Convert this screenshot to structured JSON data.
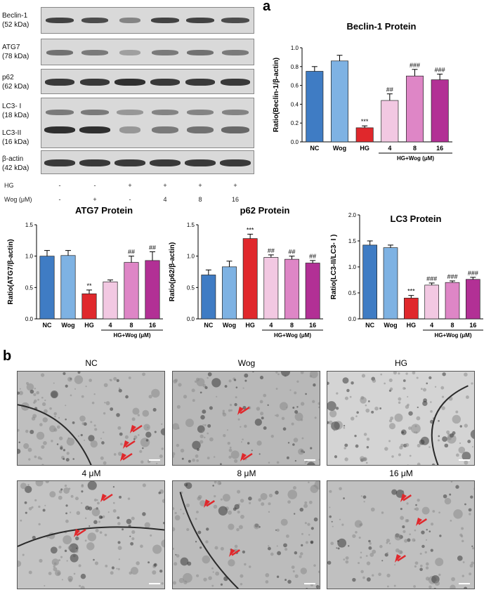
{
  "panel_a_label": "a",
  "panel_b_label": "b",
  "blots": [
    {
      "label_line1": "Beclin-1",
      "label_line2": "(52 kDa)"
    },
    {
      "label_line1": "ATG7",
      "label_line2": "(78 kDa)"
    },
    {
      "label_line1": "p62",
      "label_line2": "(62 kDa)"
    },
    {
      "label_line1": "LC3- I",
      "label_line2": "(18 kDa)",
      "label_line3": "LC3-II",
      "label_line4": "(16 kDa)"
    },
    {
      "label_line1": "β-actin",
      "label_line2": "(42 kDa)"
    }
  ],
  "treatment_table": {
    "hg_label": "HG",
    "wog_label": "Wog (μM)",
    "hg": [
      "-",
      "-",
      "+",
      "+",
      "+",
      "+"
    ],
    "wog": [
      "-",
      "+",
      "-",
      "4",
      "8",
      "16"
    ]
  },
  "chart_data": [
    {
      "type": "bar",
      "title": "Beclin-1 Protein",
      "ylabel": "Ratio(Beclin-1/β-actin)",
      "categories": [
        "NC",
        "Wog",
        "HG",
        "4",
        "8",
        "16"
      ],
      "values": [
        0.75,
        0.86,
        0.15,
        0.44,
        0.7,
        0.66
      ],
      "errors": [
        0.05,
        0.06,
        0.02,
        0.07,
        0.07,
        0.06
      ],
      "annotations": [
        "",
        "",
        "***",
        "##",
        "###",
        "###"
      ],
      "colors": [
        "#3f7cc4",
        "#7eb2e3",
        "#e0282c",
        "#f2c8e2",
        "#de86c6",
        "#b23095"
      ],
      "ylim": [
        0,
        1.0
      ],
      "yticks": [
        "0.0",
        "0.2",
        "0.4",
        "0.6",
        "0.8",
        "1.0"
      ],
      "group_label": "HG+Wog (μM)"
    },
    {
      "type": "bar",
      "title": "ATG7 Protein",
      "ylabel": "Ratio(ATG7/β-actin)",
      "categories": [
        "NC",
        "Wog",
        "HG",
        "4",
        "8",
        "16"
      ],
      "values": [
        1.0,
        1.01,
        0.4,
        0.59,
        0.9,
        0.93
      ],
      "errors": [
        0.09,
        0.08,
        0.06,
        0.03,
        0.1,
        0.14
      ],
      "annotations": [
        "",
        "",
        "**",
        "",
        "##",
        "##"
      ],
      "colors": [
        "#3f7cc4",
        "#7eb2e3",
        "#e0282c",
        "#f2c8e2",
        "#de86c6",
        "#b23095"
      ],
      "ylim": [
        0,
        1.5
      ],
      "yticks": [
        "0.0",
        "0.5",
        "1.0",
        "1.5"
      ],
      "group_label": "HG+Wog (μM)"
    },
    {
      "type": "bar",
      "title": "p62 Protein",
      "ylabel": "Ratio(p62/β-actin)",
      "categories": [
        "NC",
        "Wog",
        "HG",
        "4",
        "8",
        "16"
      ],
      "values": [
        0.7,
        0.83,
        1.28,
        0.98,
        0.95,
        0.89
      ],
      "errors": [
        0.08,
        0.09,
        0.07,
        0.04,
        0.05,
        0.04
      ],
      "annotations": [
        "",
        "",
        "***",
        "##",
        "##",
        "##"
      ],
      "colors": [
        "#3f7cc4",
        "#7eb2e3",
        "#e0282c",
        "#f2c8e2",
        "#de86c6",
        "#b23095"
      ],
      "ylim": [
        0,
        1.5
      ],
      "yticks": [
        "0.0",
        "0.5",
        "1.0",
        "1.5"
      ],
      "group_label": "HG+Wog (μM)"
    },
    {
      "type": "bar",
      "title": "LC3 Protein",
      "ylabel": "Ratio(LC3-II/LC3- I )",
      "categories": [
        "NC",
        "Wog",
        "HG",
        "4",
        "8",
        "16"
      ],
      "values": [
        1.42,
        1.37,
        0.4,
        0.65,
        0.7,
        0.76
      ],
      "errors": [
        0.08,
        0.05,
        0.05,
        0.04,
        0.03,
        0.04
      ],
      "annotations": [
        "",
        "",
        "***",
        "###",
        "###",
        "###"
      ],
      "colors": [
        "#3f7cc4",
        "#7eb2e3",
        "#e0282c",
        "#f2c8e2",
        "#de86c6",
        "#b23095"
      ],
      "ylim": [
        0,
        2.0
      ],
      "yticks": [
        "0.0",
        "0.5",
        "1.0",
        "1.5",
        "2.0"
      ],
      "group_label": "HG+Wog (μM)"
    }
  ],
  "em_images": [
    {
      "title": "NC"
    },
    {
      "title": "Wog"
    },
    {
      "title": "HG"
    },
    {
      "title": "4 μM"
    },
    {
      "title": "8 μM"
    },
    {
      "title": "16 μM"
    }
  ]
}
